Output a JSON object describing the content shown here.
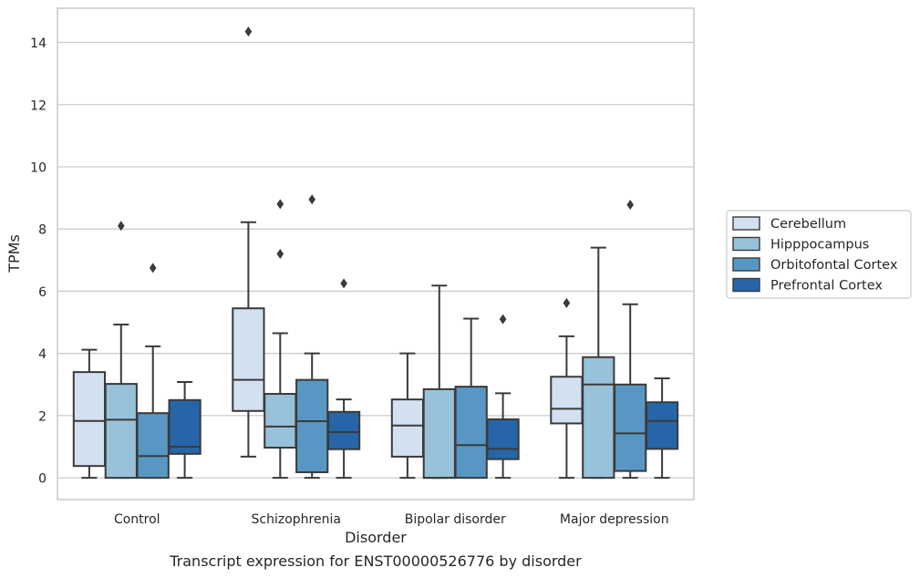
{
  "caption": "Transcript expression for ENST00000526776 by disorder",
  "chart_data": {
    "type": "boxplot",
    "xlabel": "Disorder",
    "ylabel": "TPMs",
    "ylim": [
      -0.7,
      15.1
    ],
    "yticks": [
      0,
      2,
      4,
      6,
      8,
      10,
      12,
      14
    ],
    "grid": true,
    "legend_position": "right",
    "categories": [
      "Control",
      "Schizophrenia",
      "Bipolar disorder",
      "Major depression"
    ],
    "series": [
      {
        "name": "Cerebellum",
        "color": "#d3e0f0",
        "boxes": [
          {
            "whisker_low": 0.0,
            "q1": 0.38,
            "median": 1.83,
            "q3": 3.4,
            "whisker_high": 4.12,
            "outliers": []
          },
          {
            "whisker_low": 0.68,
            "q1": 2.15,
            "median": 3.15,
            "q3": 5.45,
            "whisker_high": 8.22,
            "outliers": [
              14.35
            ]
          },
          {
            "whisker_low": 0.0,
            "q1": 0.68,
            "median": 1.68,
            "q3": 2.52,
            "whisker_high": 4.0,
            "outliers": []
          },
          {
            "whisker_low": 0.0,
            "q1": 1.75,
            "median": 2.22,
            "q3": 3.25,
            "whisker_high": 4.55,
            "outliers": [
              5.62
            ]
          }
        ]
      },
      {
        "name": "Hipppocampus",
        "color": "#98c1da",
        "boxes": [
          {
            "whisker_low": 0.0,
            "q1": 0.0,
            "median": 1.87,
            "q3": 3.02,
            "whisker_high": 4.93,
            "outliers": [
              8.1
            ]
          },
          {
            "whisker_low": 0.0,
            "q1": 0.97,
            "median": 1.65,
            "q3": 2.7,
            "whisker_high": 4.65,
            "outliers": [
              7.2,
              8.8
            ]
          },
          {
            "whisker_low": 0.0,
            "q1": 0.0,
            "median": 0.0,
            "q3": 2.85,
            "whisker_high": 6.18,
            "outliers": []
          },
          {
            "whisker_low": 0.0,
            "q1": 0.0,
            "median": 3.0,
            "q3": 3.88,
            "whisker_high": 7.4,
            "outliers": []
          }
        ]
      },
      {
        "name": "Orbitofontal Cortex",
        "color": "#5897c3",
        "boxes": [
          {
            "whisker_low": 0.0,
            "q1": 0.0,
            "median": 0.7,
            "q3": 2.08,
            "whisker_high": 4.23,
            "outliers": [
              6.75
            ]
          },
          {
            "whisker_low": 0.0,
            "q1": 0.18,
            "median": 1.82,
            "q3": 3.15,
            "whisker_high": 4.0,
            "outliers": [
              8.95
            ]
          },
          {
            "whisker_low": 0.0,
            "q1": 0.0,
            "median": 1.05,
            "q3": 2.93,
            "whisker_high": 5.12,
            "outliers": []
          },
          {
            "whisker_low": 0.0,
            "q1": 0.22,
            "median": 1.43,
            "q3": 3.0,
            "whisker_high": 5.58,
            "outliers": [
              8.78
            ]
          }
        ]
      },
      {
        "name": "Prefrontal Cortex",
        "color": "#2666a8",
        "boxes": [
          {
            "whisker_low": 0.0,
            "q1": 0.77,
            "median": 1.0,
            "q3": 2.5,
            "whisker_high": 3.08,
            "outliers": []
          },
          {
            "whisker_low": 0.0,
            "q1": 0.92,
            "median": 1.47,
            "q3": 2.12,
            "whisker_high": 2.52,
            "outliers": [
              6.25
            ]
          },
          {
            "whisker_low": 0.0,
            "q1": 0.6,
            "median": 0.93,
            "q3": 1.88,
            "whisker_high": 2.72,
            "outliers": [
              5.1
            ]
          },
          {
            "whisker_low": 0.0,
            "q1": 0.93,
            "median": 1.83,
            "q3": 2.43,
            "whisker_high": 3.2,
            "outliers": []
          }
        ]
      }
    ]
  }
}
